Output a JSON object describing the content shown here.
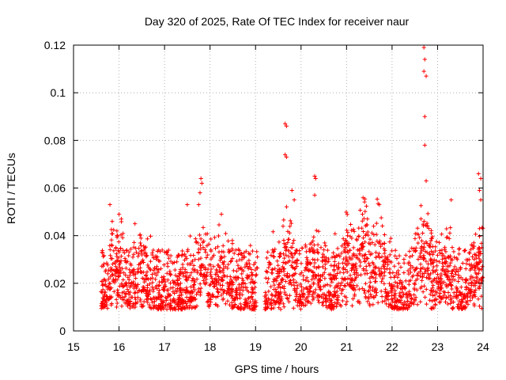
{
  "chart_data": {
    "type": "scatter",
    "title": "Day 320 of 2025, Rate Of TEC Index for receiver naur",
    "xlabel": "GPS time / hours",
    "ylabel": "ROTI / TECUs",
    "xlim": [
      15,
      24
    ],
    "ylim": [
      0,
      0.12
    ],
    "xticks": [
      "15",
      "16",
      "17",
      "18",
      "19",
      "20",
      "21",
      "22",
      "23",
      "24"
    ],
    "yticks": [
      "0",
      "0.02",
      "0.04",
      "0.06",
      "0.08",
      "0.1",
      "0.12"
    ],
    "grid": true,
    "marker": "+",
    "color": "#ff0000",
    "series": [
      {
        "name": "ROTI",
        "x_start": 15.6,
        "x_end": 24.0,
        "gap": [
          19.05,
          19.2
        ],
        "typical_range": [
          0.005,
          0.03
        ],
        "points": [
          {
            "x": 15.8,
            "y": 0.053
          },
          {
            "x": 15.85,
            "y": 0.046
          },
          {
            "x": 16.0,
            "y": 0.049
          },
          {
            "x": 16.05,
            "y": 0.047
          },
          {
            "x": 16.35,
            "y": 0.045
          },
          {
            "x": 17.5,
            "y": 0.053
          },
          {
            "x": 17.8,
            "y": 0.064
          },
          {
            "x": 17.82,
            "y": 0.062
          },
          {
            "x": 17.78,
            "y": 0.058
          },
          {
            "x": 17.75,
            "y": 0.053
          },
          {
            "x": 18.25,
            "y": 0.049
          },
          {
            "x": 19.65,
            "y": 0.087
          },
          {
            "x": 19.68,
            "y": 0.086
          },
          {
            "x": 19.65,
            "y": 0.074
          },
          {
            "x": 19.68,
            "y": 0.073
          },
          {
            "x": 19.8,
            "y": 0.059
          },
          {
            "x": 19.85,
            "y": 0.055
          },
          {
            "x": 20.3,
            "y": 0.065
          },
          {
            "x": 20.32,
            "y": 0.064
          },
          {
            "x": 20.3,
            "y": 0.057
          },
          {
            "x": 21.35,
            "y": 0.049
          },
          {
            "x": 22.7,
            "y": 0.119
          },
          {
            "x": 22.72,
            "y": 0.114
          },
          {
            "x": 22.7,
            "y": 0.109
          },
          {
            "x": 22.75,
            "y": 0.107
          },
          {
            "x": 22.72,
            "y": 0.09
          },
          {
            "x": 22.72,
            "y": 0.078
          },
          {
            "x": 22.75,
            "y": 0.063
          },
          {
            "x": 23.3,
            "y": 0.055
          },
          {
            "x": 23.9,
            "y": 0.066
          },
          {
            "x": 23.95,
            "y": 0.064
          },
          {
            "x": 23.92,
            "y": 0.059
          },
          {
            "x": 23.95,
            "y": 0.055
          }
        ]
      }
    ]
  }
}
